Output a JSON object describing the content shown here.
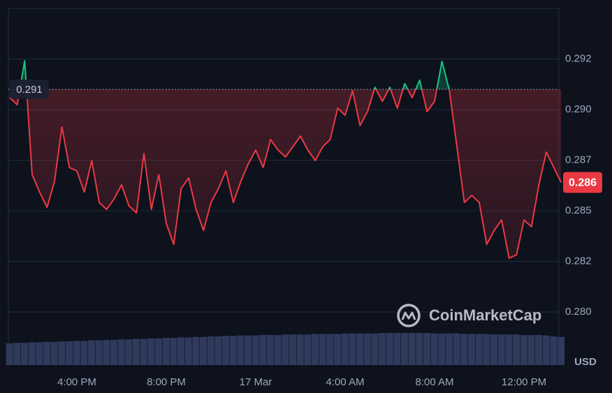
{
  "chart_data": {
    "type": "line",
    "categories": [
      null,
      null,
      null,
      null,
      null,
      null,
      null,
      null,
      null,
      "4:00 PM",
      null,
      null,
      null,
      null,
      null,
      null,
      null,
      null,
      null,
      null,
      null,
      "8:00 PM",
      null,
      null,
      null,
      null,
      null,
      null,
      null,
      null,
      null,
      null,
      null,
      "17 Mar",
      null,
      null,
      null,
      null,
      null,
      null,
      null,
      null,
      null,
      null,
      null,
      "4:00 AM",
      null,
      null,
      null,
      null,
      null,
      null,
      null,
      null,
      null,
      null,
      null,
      "8:00 AM",
      null,
      null,
      null,
      null,
      null,
      null,
      null,
      null,
      null,
      null,
      null,
      "12:00 PM",
      null,
      null,
      null,
      null,
      null
    ],
    "values": [
      0.29059,
      0.29024,
      0.29241,
      0.28679,
      0.28593,
      0.28517,
      0.28645,
      0.28914,
      0.28714,
      0.28697,
      0.28593,
      0.28748,
      0.28541,
      0.28507,
      0.28559,
      0.28628,
      0.28524,
      0.2849,
      0.28783,
      0.28507,
      0.28679,
      0.28438,
      0.28334,
      0.2861,
      0.28662,
      0.28507,
      0.28403,
      0.28541,
      0.2861,
      0.28697,
      0.28541,
      0.28645,
      0.28731,
      0.288,
      0.28714,
      0.28852,
      0.288,
      0.28766,
      0.28817,
      0.28869,
      0.288,
      0.28748,
      0.28817,
      0.28852,
      0.29007,
      0.28972,
      0.29093,
      0.28921,
      0.2899,
      0.2911,
      0.29041,
      0.2911,
      0.29007,
      0.29128,
      0.29059,
      0.29145,
      0.2899,
      0.29041,
      0.29238,
      0.29093,
      0.28817,
      0.28541,
      0.28576,
      0.28541,
      0.28334,
      0.28403,
      0.28455,
      0.28266,
      0.28283,
      0.28455,
      0.28421,
      0.28628,
      0.2879,
      0.28714,
      0.2864
    ],
    "volume": [
      44,
      45,
      45,
      46,
      46,
      47,
      47,
      48,
      48,
      49,
      49,
      50,
      50,
      51,
      51,
      52,
      52,
      53,
      53,
      54,
      54,
      55,
      55,
      56,
      56,
      57,
      57,
      58,
      58,
      59,
      59,
      60,
      60,
      60,
      61,
      61,
      61,
      62,
      62,
      62,
      62,
      63,
      63,
      63,
      63,
      64,
      64,
      64,
      64,
      64,
      65,
      65,
      65,
      65,
      65,
      65,
      65,
      64,
      64,
      64,
      64,
      63,
      63,
      63,
      63,
      62,
      62,
      62,
      62,
      61,
      61,
      61,
      60,
      58,
      57
    ],
    "color": "#ea3943",
    "up_color": "#16c784",
    "volume_color": "#2f3a5c",
    "baseline": 0.291,
    "last_value_label": "0.286",
    "y_label": "USD",
    "watermark": "CoinMarketCap",
    "ylim": [
      0.2775,
      0.295
    ],
    "yticks": [
      {
        "value": 0.28,
        "label": "0.280"
      },
      {
        "value": 0.2825,
        "label": "0.282"
      },
      {
        "value": 0.285,
        "label": "0.285"
      },
      {
        "value": 0.2875,
        "label": "0.287"
      },
      {
        "value": 0.29,
        "label": "0.290"
      },
      {
        "value": 0.2925,
        "label": "0.292"
      }
    ],
    "grid": true
  }
}
